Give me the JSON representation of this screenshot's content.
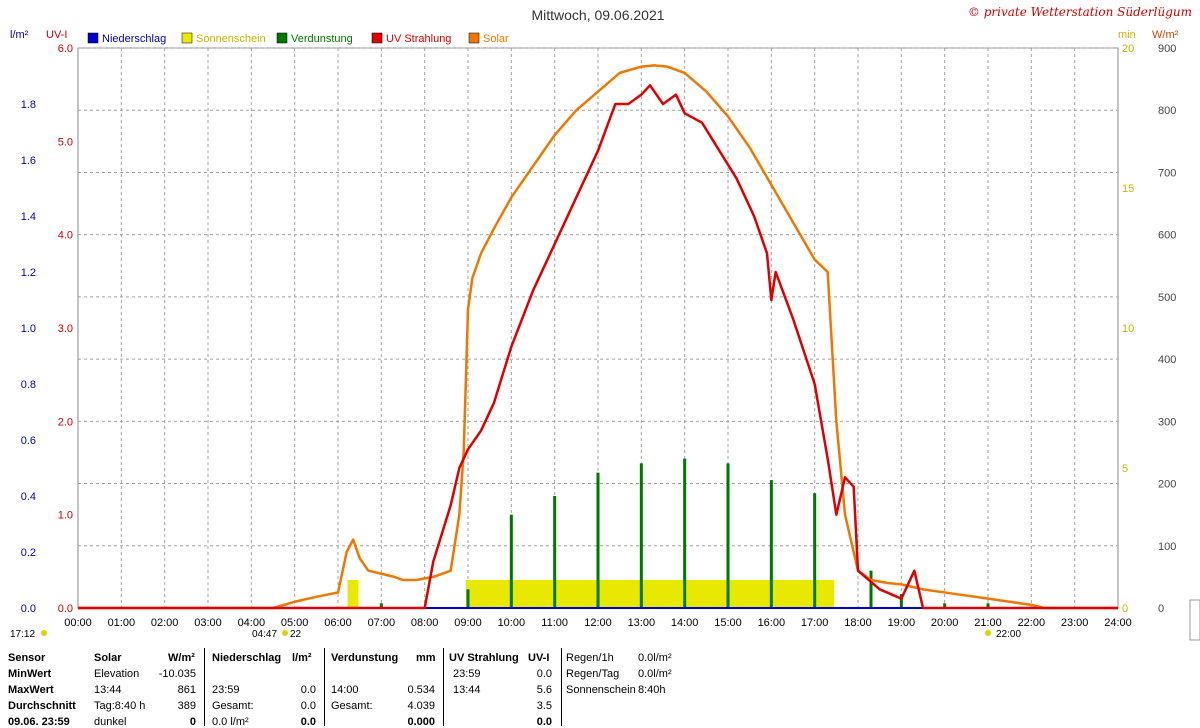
{
  "header": {
    "title": "Mittwoch, 09.06.2021",
    "copyright": "© private Wetterstation Süderlügum"
  },
  "units": {
    "left_outer": "l/m²",
    "left_inner": "UV-I",
    "right_inner": "min",
    "right_outer": "W/m²"
  },
  "legend": [
    {
      "name": "Niederschlag",
      "color": "#0000cc"
    },
    {
      "name": "Sonnenschein",
      "color": "#e8e800"
    },
    {
      "name": "Verdunstung",
      "color": "#007700"
    },
    {
      "name": "UV Strahlung",
      "color": "#dd0000"
    },
    {
      "name": "Solar",
      "color": "#ee7700"
    }
  ],
  "markers": {
    "moonrise": "17:12",
    "sunrise": "04:47",
    "sunrise_minute": "22",
    "sunset": "22:00"
  },
  "chart_data": {
    "type": "line",
    "x_ticks": [
      "00:00",
      "01:00",
      "02:00",
      "03:00",
      "04:00",
      "05:00",
      "06:00",
      "07:00",
      "08:00",
      "09:00",
      "10:00",
      "11:00",
      "12:00",
      "13:00",
      "14:00",
      "15:00",
      "16:00",
      "17:00",
      "18:00",
      "19:00",
      "20:00",
      "21:00",
      "22:00",
      "23:00",
      "24:00"
    ],
    "axes": {
      "precip": {
        "label": "l/m²",
        "range": [
          0,
          2.0
        ],
        "ticks": [
          "0.0",
          "0.2",
          "0.4",
          "0.6",
          "0.8",
          "1.0",
          "1.2",
          "1.4",
          "1.6",
          "1.8"
        ]
      },
      "uv": {
        "label": "UV-I",
        "range": [
          0,
          6.0
        ],
        "ticks": [
          "0.0",
          "1.0",
          "2.0",
          "3.0",
          "4.0",
          "5.0",
          "6.0"
        ]
      },
      "sunshine": {
        "label": "min",
        "range": [
          0,
          20
        ],
        "ticks": [
          "0",
          "5",
          "10",
          "15",
          "20"
        ]
      },
      "solar": {
        "label": "W/m²",
        "range": [
          0,
          900
        ],
        "ticks": [
          "0",
          "100",
          "200",
          "300",
          "400",
          "500",
          "600",
          "700",
          "800",
          "900"
        ]
      }
    },
    "grid": true,
    "series": [
      {
        "name": "Solar",
        "axis": "solar",
        "x": [
          0,
          4.5,
          5.0,
          5.5,
          6.0,
          6.2,
          6.35,
          6.5,
          6.7,
          7.0,
          7.3,
          7.5,
          7.8,
          8.2,
          8.6,
          8.8,
          8.9,
          9.0,
          9.1,
          9.3,
          9.6,
          10.0,
          10.5,
          11.0,
          11.5,
          12.0,
          12.5,
          13.0,
          13.3,
          13.6,
          14.0,
          14.5,
          15.0,
          15.5,
          16.0,
          16.5,
          17.0,
          17.3,
          17.5,
          17.7,
          18.0,
          18.3,
          18.7,
          19.0,
          19.5,
          20.0,
          20.5,
          21.0,
          21.5,
          22.0,
          22.3,
          24.0
        ],
        "y": [
          0,
          0,
          10,
          18,
          25,
          90,
          110,
          80,
          60,
          55,
          50,
          45,
          45,
          50,
          60,
          150,
          250,
          480,
          530,
          570,
          610,
          660,
          710,
          760,
          800,
          830,
          860,
          870,
          872,
          870,
          860,
          830,
          790,
          740,
          680,
          620,
          560,
          540,
          300,
          150,
          60,
          45,
          40,
          38,
          30,
          25,
          20,
          15,
          10,
          5,
          0,
          0
        ]
      },
      {
        "name": "UV Strahlung",
        "axis": "uv",
        "x": [
          0,
          8.0,
          8.2,
          8.6,
          8.8,
          9.0,
          9.3,
          9.6,
          10.0,
          10.5,
          11.0,
          11.5,
          12.0,
          12.4,
          12.7,
          13.0,
          13.2,
          13.5,
          13.8,
          14.0,
          14.4,
          14.8,
          15.2,
          15.6,
          15.9,
          16.0,
          16.1,
          16.5,
          17.0,
          17.3,
          17.5,
          17.7,
          17.9,
          18.0,
          18.5,
          19.0,
          19.3,
          19.5,
          24.0
        ],
        "y": [
          0,
          0,
          0.5,
          1.1,
          1.5,
          1.7,
          1.9,
          2.2,
          2.8,
          3.4,
          3.9,
          4.4,
          4.9,
          5.4,
          5.4,
          5.5,
          5.6,
          5.4,
          5.5,
          5.3,
          5.2,
          4.9,
          4.6,
          4.2,
          3.8,
          3.3,
          3.6,
          3.1,
          2.4,
          1.6,
          1.0,
          1.4,
          1.3,
          0.4,
          0.2,
          0.1,
          0.4,
          0,
          0
        ]
      }
    ],
    "sunshine": {
      "axis": "sunshine",
      "blocks": [
        {
          "start": 6.22,
          "end": 6.47,
          "value": 1.0
        },
        {
          "start": 8.95,
          "end": 17.45,
          "value": 1.0
        }
      ]
    },
    "evaporation": {
      "axis": "uv",
      "bars": [
        {
          "x": 7.0,
          "y": 0.05
        },
        {
          "x": 9.0,
          "y": 0.2
        },
        {
          "x": 10.0,
          "y": 1.0
        },
        {
          "x": 11.0,
          "y": 1.2
        },
        {
          "x": 12.0,
          "y": 1.45
        },
        {
          "x": 13.0,
          "y": 1.55
        },
        {
          "x": 14.0,
          "y": 1.6
        },
        {
          "x": 15.0,
          "y": 1.55
        },
        {
          "x": 16.0,
          "y": 1.37
        },
        {
          "x": 17.0,
          "y": 1.23
        },
        {
          "x": 18.3,
          "y": 0.4
        },
        {
          "x": 19.0,
          "y": 0.15
        },
        {
          "x": 20.0,
          "y": 0.05
        },
        {
          "x": 21.0,
          "y": 0.05
        }
      ]
    },
    "precipitation": {
      "axis": "precip",
      "x": [
        0,
        24
      ],
      "y": [
        0,
        0
      ]
    }
  },
  "stats": {
    "headers": [
      "Sensor",
      "Solar",
      "W/m²",
      "Niederschlag",
      "l/m²",
      "Verdunstung",
      "mm",
      "UV Strahlung",
      "UV-I"
    ],
    "rows": [
      {
        "label": "MinWert",
        "solar_a": "Elevation",
        "solar_b": "-10.035",
        "precip_a": "",
        "precip_b": "",
        "evap_a": "",
        "evap_b": "",
        "uv_a": "23:59",
        "uv_b": "0.0"
      },
      {
        "label": "MaxWert",
        "solar_a": "13:44",
        "solar_b": "861",
        "precip_a": "23:59",
        "precip_b": "0.0",
        "evap_a": "14:00",
        "evap_b": "0.534",
        "uv_a": "13:44",
        "uv_b": "5.6"
      },
      {
        "label": "Durchschnitt",
        "solar_a": "Tag:8:40 h",
        "solar_b": "389",
        "precip_a": "Gesamt:",
        "precip_b": "0.0",
        "evap_a": "Gesamt:",
        "evap_b": "4.039",
        "uv_a": "",
        "uv_b": "3.5"
      },
      {
        "label": "09.06. 23:59",
        "solar_a": "dunkel",
        "solar_b": "0",
        "precip_a": "0.0 l/m²",
        "precip_b": "0.0",
        "evap_a": "",
        "evap_b": "0.000",
        "uv_a": "",
        "uv_b": "0.0"
      }
    ],
    "extra": [
      {
        "label": "Regen/1h",
        "value": "0.0l/m²"
      },
      {
        "label": "Regen/Tag",
        "value": "0.0l/m²"
      },
      {
        "label": "Sonnenschein",
        "value": "8:40h"
      }
    ]
  }
}
